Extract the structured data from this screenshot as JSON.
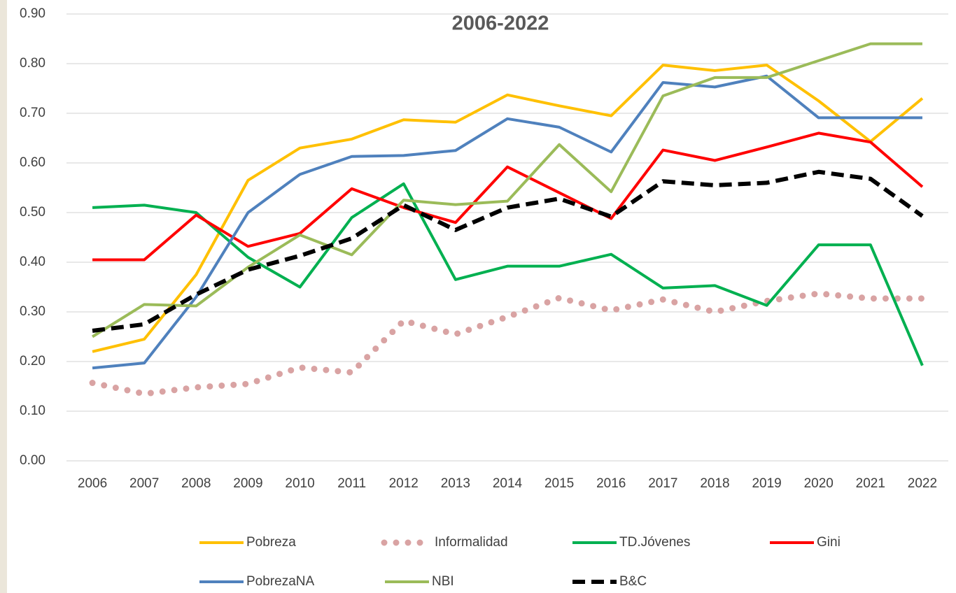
{
  "chart_data": {
    "type": "line",
    "title": "2006-2022",
    "categories": [
      "2006",
      "2007",
      "2008",
      "2009",
      "2010",
      "2011",
      "2012",
      "2013",
      "2014",
      "2015",
      "2016",
      "2017",
      "2018",
      "2019",
      "2020",
      "2021",
      "2022"
    ],
    "ylim": [
      0,
      0.9
    ],
    "yticks": [
      {
        "value": 0,
        "label": "0.00"
      },
      {
        "value": 0.1,
        "label": "0.10"
      },
      {
        "value": 0.2,
        "label": "0.20"
      },
      {
        "value": 0.3,
        "label": "0.30"
      },
      {
        "value": 0.4,
        "label": "0.40"
      },
      {
        "value": 0.5,
        "label": "0.50"
      },
      {
        "value": 0.6,
        "label": "0.60"
      },
      {
        "value": 0.7,
        "label": "0.70"
      },
      {
        "value": 0.8,
        "label": "0.80"
      },
      {
        "value": 0.9,
        "label": "0.90"
      }
    ],
    "grid": true,
    "legend": "bottom",
    "series": [
      {
        "name": "Pobreza",
        "color": "#ffc000",
        "style": "solid",
        "values": [
          0.22,
          0.245,
          0.375,
          0.565,
          0.63,
          0.648,
          0.687,
          0.682,
          0.737,
          0.715,
          0.695,
          0.797,
          0.786,
          0.797,
          0.725,
          0.643,
          0.73
        ]
      },
      {
        "name": "Informalidad",
        "color": "#d9a3a3",
        "style": "dotted",
        "values": [
          0.157,
          0.135,
          0.148,
          0.155,
          0.188,
          0.178,
          0.282,
          0.255,
          0.29,
          0.328,
          0.303,
          0.325,
          0.3,
          0.322,
          0.337,
          0.327,
          0.327
        ]
      },
      {
        "name": "TD.Jóvenes",
        "color": "#00b050",
        "style": "solid",
        "values": [
          0.51,
          0.515,
          0.5,
          0.41,
          0.35,
          0.49,
          0.558,
          0.365,
          0.392,
          0.392,
          0.416,
          0.348,
          0.353,
          0.313,
          0.435,
          0.435,
          0.192
        ]
      },
      {
        "name": "Gini",
        "color": "#ff0000",
        "style": "solid",
        "values": [
          0.405,
          0.405,
          0.495,
          0.432,
          0.458,
          0.548,
          0.51,
          0.48,
          0.592,
          0.54,
          0.488,
          0.626,
          0.605,
          0.632,
          0.66,
          0.642,
          0.552
        ]
      },
      {
        "name": "PobrezaNA",
        "color": "#4f81bd",
        "style": "solid",
        "values": [
          0.187,
          0.197,
          0.33,
          0.5,
          0.577,
          0.613,
          0.615,
          0.625,
          0.689,
          0.672,
          0.622,
          0.762,
          0.753,
          0.775,
          0.691,
          0.691,
          0.691
        ]
      },
      {
        "name": "NBI",
        "color": "#9bbb59",
        "style": "solid",
        "values": [
          0.25,
          0.315,
          0.312,
          0.39,
          0.455,
          0.415,
          0.525,
          0.516,
          0.523,
          0.637,
          0.542,
          0.735,
          0.772,
          0.772,
          0.806,
          0.84,
          0.84
        ]
      },
      {
        "name": "B&C",
        "color": "#000000",
        "style": "dashed",
        "values": [
          0.262,
          0.275,
          0.335,
          0.385,
          0.413,
          0.448,
          0.515,
          0.465,
          0.51,
          0.528,
          0.492,
          0.563,
          0.555,
          0.56,
          0.582,
          0.568,
          0.493
        ]
      }
    ]
  }
}
